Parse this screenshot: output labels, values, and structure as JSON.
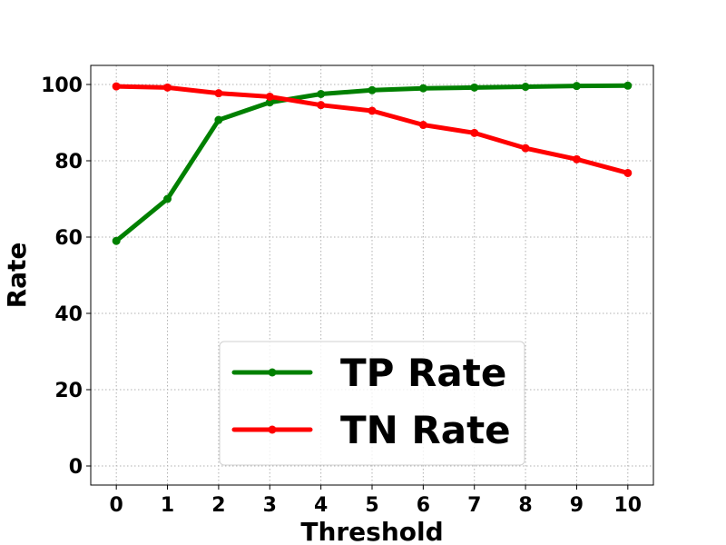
{
  "chart_data": {
    "type": "line",
    "x": [
      0,
      1,
      2,
      3,
      4,
      5,
      6,
      7,
      8,
      9,
      10
    ],
    "xlabel": "Threshold",
    "ylabel": "Rate",
    "xlim": [
      -0.5,
      10.5
    ],
    "ylim": [
      -5,
      105
    ],
    "xticks": [
      0,
      1,
      2,
      3,
      4,
      5,
      6,
      7,
      8,
      9,
      10
    ],
    "yticks": [
      0,
      20,
      40,
      60,
      80,
      100
    ],
    "grid": true,
    "legend": "lower center",
    "series": [
      {
        "name": "TP Rate",
        "color": "#008000",
        "marker": "circle",
        "values": [
          59.0,
          70.0,
          90.7,
          95.3,
          97.5,
          98.5,
          99.0,
          99.2,
          99.4,
          99.6,
          99.7
        ]
      },
      {
        "name": "TN Rate",
        "color": "#ff0000",
        "marker": "circle",
        "values": [
          99.5,
          99.2,
          97.7,
          96.8,
          94.6,
          93.1,
          89.4,
          87.3,
          83.3,
          80.4,
          76.8
        ]
      }
    ]
  }
}
